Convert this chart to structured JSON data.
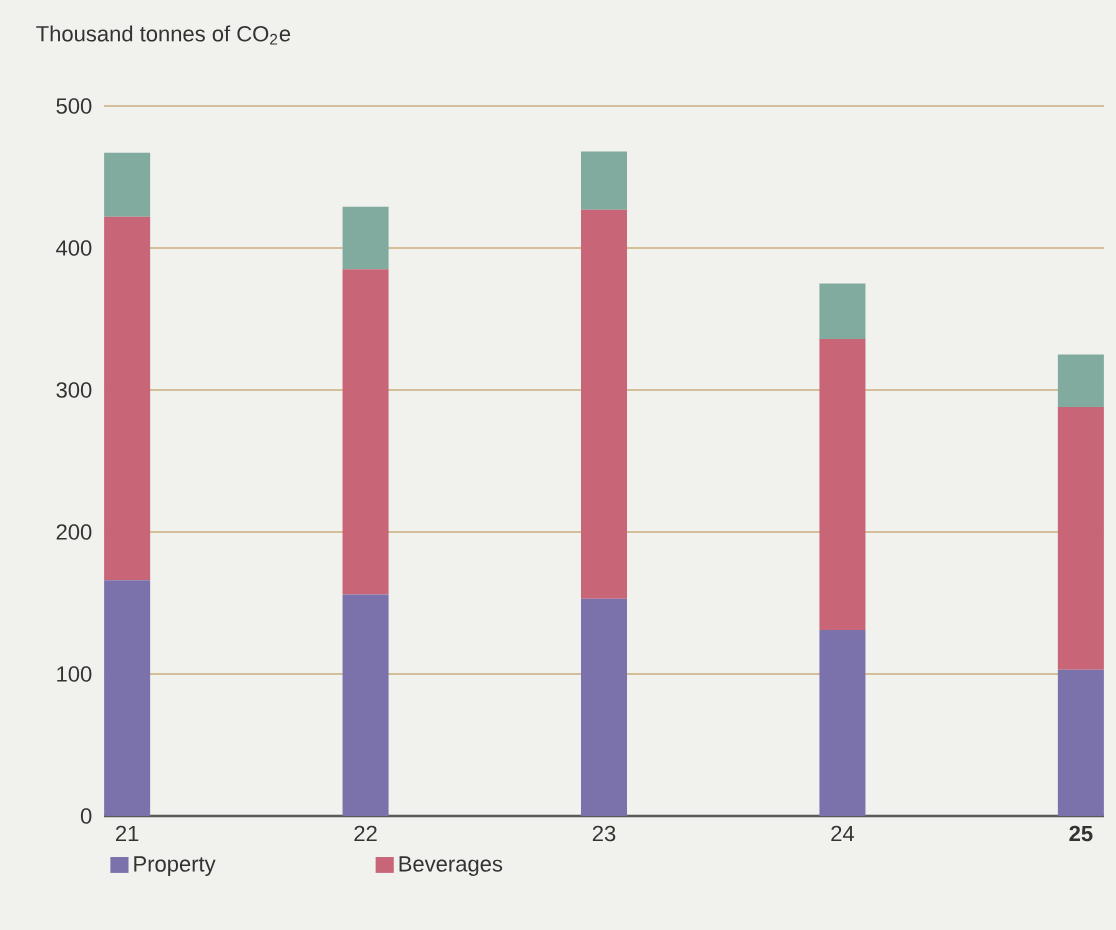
{
  "chart_data": {
    "type": "bar",
    "stacked": true,
    "ylabel": "Thousand tonnes of CO$_{2}$e",
    "categories": [
      "21",
      "22",
      "23",
      "24",
      "**25**"
    ],
    "series": [
      {
        "name": "Property",
        "color": "#7b72ab",
        "values": [
          166,
          156,
          153,
          131,
          103
        ]
      },
      {
        "name": "Beverages",
        "color": "#c86678",
        "values": [
          256,
          229,
          274,
          205,
          185
        ]
      },
      {
        "color": "#82aba0",
        "values": [
          45,
          44,
          41,
          39,
          37
        ]
      }
    ],
    "ylim": [
      0,
      500
    ],
    "yticks": [
      0,
      100,
      200,
      300,
      400,
      500
    ],
    "grid": "y",
    "legend": "bottom"
  }
}
